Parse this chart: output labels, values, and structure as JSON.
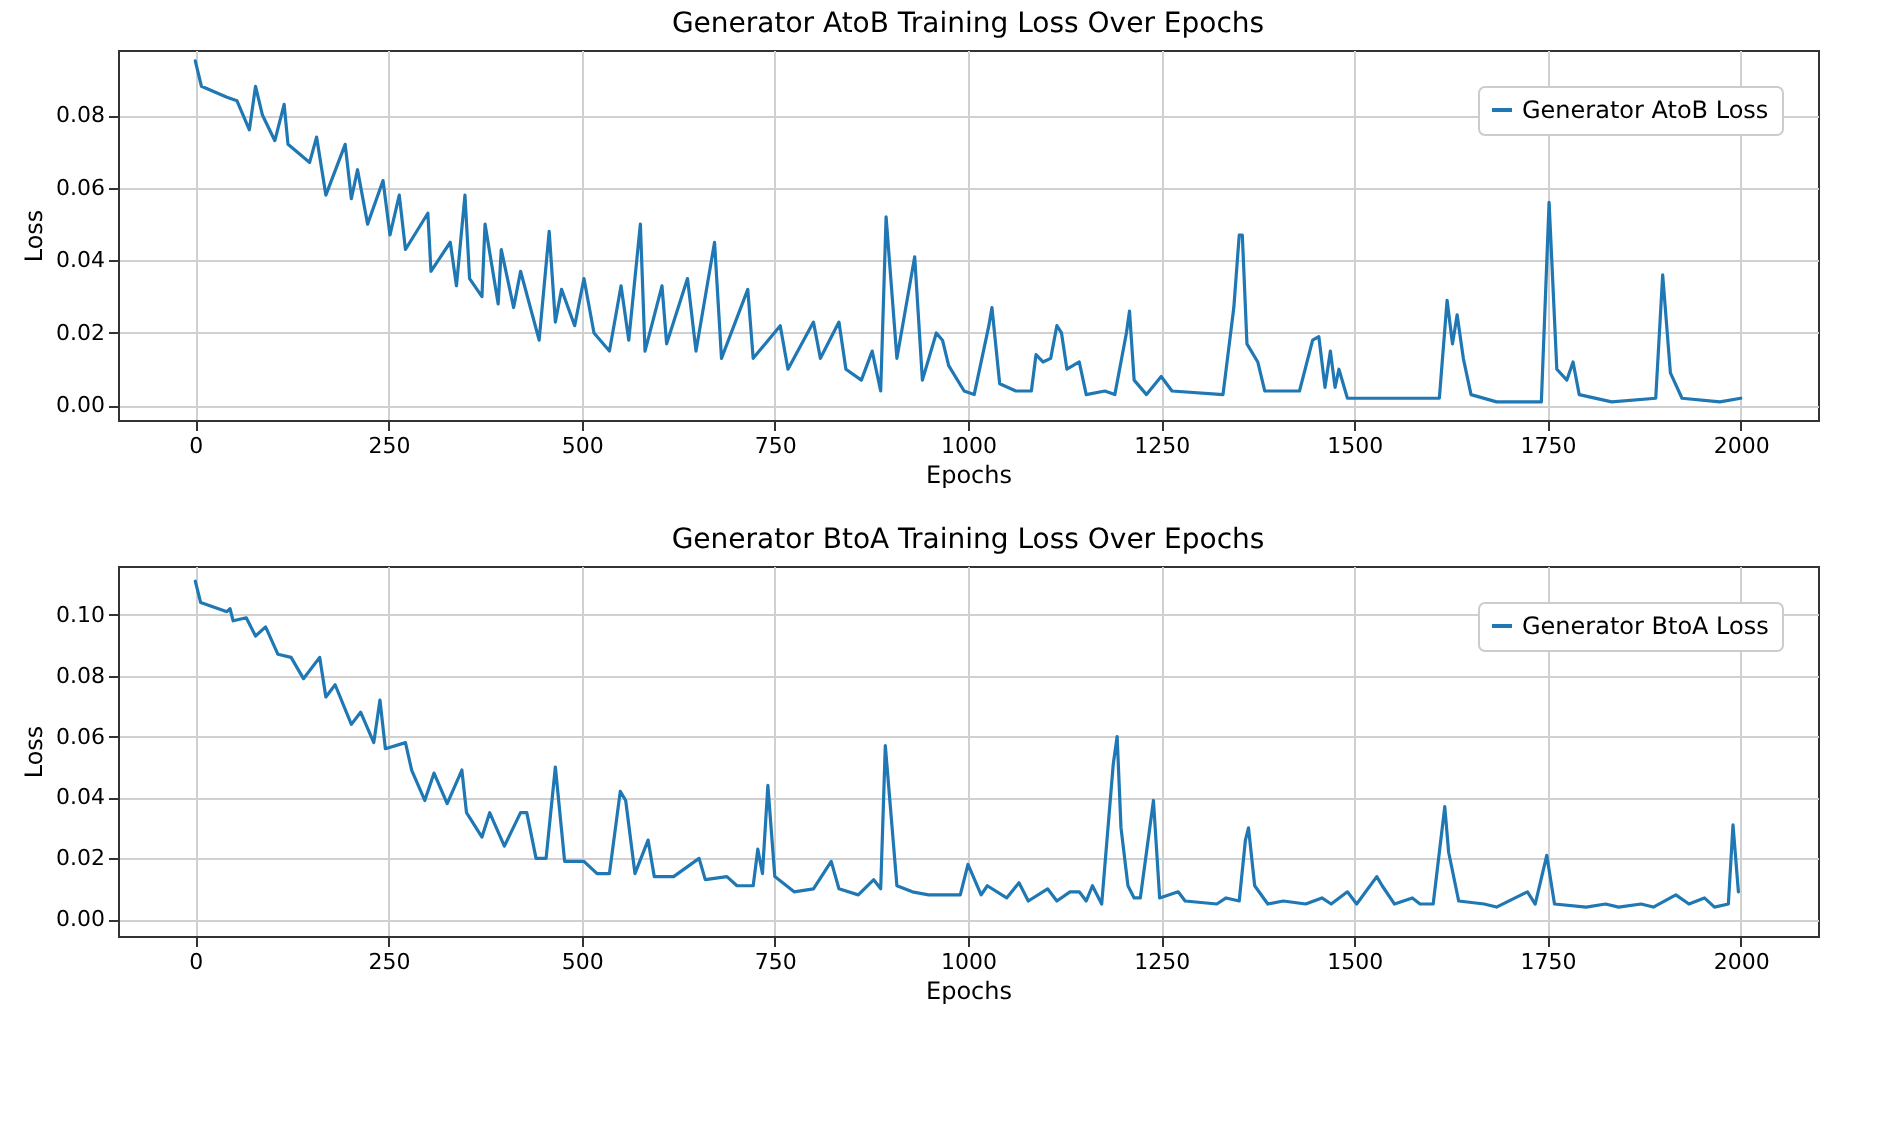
{
  "chart_data": [
    {
      "type": "line",
      "title": "Generator AtoB Training Loss Over Epochs",
      "xlabel": "Epochs",
      "ylabel": "Loss",
      "xlim": [
        -100,
        2100
      ],
      "ylim": [
        -0.004,
        0.098
      ],
      "xticks": [
        0,
        250,
        500,
        750,
        1000,
        1250,
        1500,
        1750,
        2000
      ],
      "yticks": [
        {
          "value": 0,
          "label": "0.00"
        },
        {
          "value": 0.02,
          "label": "0.02"
        },
        {
          "value": 0.04,
          "label": "0.04"
        },
        {
          "value": 0.06,
          "label": "0.06"
        },
        {
          "value": 0.08,
          "label": "0.08"
        }
      ],
      "grid": true,
      "legend": "top right",
      "line_style": "solid",
      "marker": "none",
      "series": [
        {
          "name": "Generator AtoB Loss",
          "color": "#1f77b4",
          "x": [
            0,
            8,
            41,
            54,
            70,
            78,
            87,
            103,
            115,
            120,
            148,
            157,
            169,
            194,
            202,
            210,
            223,
            243,
            252,
            264,
            272,
            301,
            305,
            330,
            338,
            349,
            355,
            371,
            375,
            392,
            396,
            412,
            421,
            445,
            458,
            466,
            474,
            491,
            503,
            516,
            536,
            551,
            561,
            576,
            582,
            604,
            610,
            637,
            648,
            672,
            681,
            715,
            722,
            757,
            767,
            800,
            809,
            833,
            842,
            862,
            876,
            887,
            894,
            908,
            931,
            941,
            959,
            967,
            975,
            995,
            1008,
            1027,
            1031,
            1041,
            1062,
            1082,
            1088,
            1097,
            1107,
            1115,
            1121,
            1128,
            1144,
            1153,
            1177,
            1190,
            1205,
            1209,
            1215,
            1231,
            1250,
            1264,
            1330,
            1344,
            1351,
            1355,
            1361,
            1375,
            1384,
            1429,
            1446,
            1454,
            1462,
            1469,
            1475,
            1480,
            1491,
            1520,
            1569,
            1610,
            1620,
            1627,
            1633,
            1641,
            1651,
            1684,
            1742,
            1752,
            1762,
            1775,
            1783,
            1791,
            1833,
            1890,
            1899,
            1909,
            1924,
            1973,
            2000
          ],
          "values": [
            0.095,
            0.088,
            0.085,
            0.084,
            0.076,
            0.088,
            0.08,
            0.073,
            0.083,
            0.072,
            0.067,
            0.074,
            0.058,
            0.072,
            0.057,
            0.065,
            0.05,
            0.062,
            0.047,
            0.058,
            0.043,
            0.053,
            0.037,
            0.045,
            0.033,
            0.058,
            0.035,
            0.03,
            0.05,
            0.028,
            0.043,
            0.027,
            0.037,
            0.018,
            0.048,
            0.023,
            0.032,
            0.022,
            0.035,
            0.02,
            0.015,
            0.033,
            0.018,
            0.05,
            0.015,
            0.033,
            0.017,
            0.035,
            0.015,
            0.045,
            0.013,
            0.032,
            0.013,
            0.022,
            0.01,
            0.023,
            0.013,
            0.023,
            0.01,
            0.007,
            0.015,
            0.004,
            0.052,
            0.013,
            0.041,
            0.007,
            0.02,
            0.018,
            0.011,
            0.004,
            0.003,
            0.022,
            0.027,
            0.006,
            0.004,
            0.004,
            0.014,
            0.012,
            0.013,
            0.022,
            0.02,
            0.01,
            0.012,
            0.003,
            0.004,
            0.003,
            0.02,
            0.026,
            0.007,
            0.003,
            0.008,
            0.004,
            0.003,
            0.027,
            0.047,
            0.047,
            0.017,
            0.012,
            0.004,
            0.004,
            0.018,
            0.019,
            0.005,
            0.015,
            0.005,
            0.01,
            0.002,
            0.002,
            0.002,
            0.002,
            0.029,
            0.017,
            0.025,
            0.013,
            0.003,
            0.001,
            0.001,
            0.056,
            0.01,
            0.007,
            0.012,
            0.003,
            0.001,
            0.002,
            0.036,
            0.009,
            0.002,
            0.001,
            0.002
          ]
        }
      ]
    },
    {
      "type": "line",
      "title": "Generator BtoA Training Loss Over Epochs",
      "xlabel": "Epochs",
      "ylabel": "Loss",
      "xlim": [
        -100,
        2100
      ],
      "ylim": [
        -0.0055,
        0.116
      ],
      "xticks": [
        0,
        250,
        500,
        750,
        1000,
        1250,
        1500,
        1750,
        2000
      ],
      "yticks": [
        {
          "value": 0,
          "label": "0.00"
        },
        {
          "value": 0.02,
          "label": "0.02"
        },
        {
          "value": 0.04,
          "label": "0.04"
        },
        {
          "value": 0.06,
          "label": "0.06"
        },
        {
          "value": 0.08,
          "label": "0.08"
        },
        {
          "value": 0.1,
          "label": "0.10"
        }
      ],
      "grid": true,
      "legend": "top right",
      "line_style": "solid",
      "marker": "none",
      "series": [
        {
          "name": "Generator BtoA Loss",
          "color": "#1f77b4",
          "x": [
            0,
            7,
            41,
            45,
            49,
            66,
            78,
            91,
            107,
            124,
            140,
            161,
            169,
            181,
            202,
            214,
            231,
            239,
            246,
            272,
            280,
            297,
            309,
            326,
            345,
            351,
            371,
            381,
            400,
            421,
            429,
            441,
            454,
            466,
            478,
            503,
            520,
            536,
            550,
            557,
            569,
            586,
            594,
            619,
            652,
            660,
            688,
            701,
            722,
            728,
            734,
            741,
            750,
            775,
            800,
            823,
            833,
            858,
            878,
            887,
            893,
            908,
            928,
            949,
            990,
            1000,
            1017,
            1025,
            1050,
            1066,
            1078,
            1103,
            1115,
            1132,
            1144,
            1153,
            1161,
            1173,
            1188,
            1193,
            1198,
            1207,
            1215,
            1223,
            1240,
            1248,
            1272,
            1281,
            1322,
            1334,
            1351,
            1359,
            1363,
            1371,
            1388,
            1408,
            1437,
            1458,
            1470,
            1491,
            1503,
            1529,
            1536,
            1552,
            1575,
            1585,
            1602,
            1617,
            1622,
            1635,
            1668,
            1684,
            1724,
            1734,
            1749,
            1759,
            1800,
            1825,
            1842,
            1871,
            1887,
            1916,
            1933,
            1953,
            1966,
            1984,
            1990,
            1997
          ],
          "values": [
            0.111,
            0.104,
            0.101,
            0.102,
            0.098,
            0.099,
            0.093,
            0.096,
            0.087,
            0.086,
            0.079,
            0.086,
            0.073,
            0.077,
            0.064,
            0.068,
            0.058,
            0.072,
            0.056,
            0.058,
            0.049,
            0.039,
            0.048,
            0.038,
            0.049,
            0.035,
            0.027,
            0.035,
            0.024,
            0.035,
            0.035,
            0.02,
            0.02,
            0.05,
            0.019,
            0.019,
            0.015,
            0.015,
            0.042,
            0.039,
            0.015,
            0.026,
            0.014,
            0.014,
            0.02,
            0.013,
            0.014,
            0.011,
            0.011,
            0.023,
            0.015,
            0.044,
            0.014,
            0.009,
            0.01,
            0.019,
            0.01,
            0.008,
            0.013,
            0.01,
            0.057,
            0.011,
            0.009,
            0.008,
            0.008,
            0.018,
            0.008,
            0.011,
            0.007,
            0.012,
            0.006,
            0.01,
            0.006,
            0.009,
            0.009,
            0.006,
            0.011,
            0.005,
            0.051,
            0.06,
            0.03,
            0.011,
            0.007,
            0.007,
            0.039,
            0.007,
            0.009,
            0.006,
            0.005,
            0.007,
            0.006,
            0.026,
            0.03,
            0.011,
            0.005,
            0.006,
            0.005,
            0.007,
            0.005,
            0.009,
            0.005,
            0.014,
            0.011,
            0.005,
            0.007,
            0.005,
            0.005,
            0.037,
            0.022,
            0.006,
            0.005,
            0.004,
            0.009,
            0.005,
            0.021,
            0.005,
            0.004,
            0.005,
            0.004,
            0.005,
            0.004,
            0.008,
            0.005,
            0.007,
            0.004,
            0.005,
            0.031,
            0.009
          ]
        }
      ]
    }
  ]
}
